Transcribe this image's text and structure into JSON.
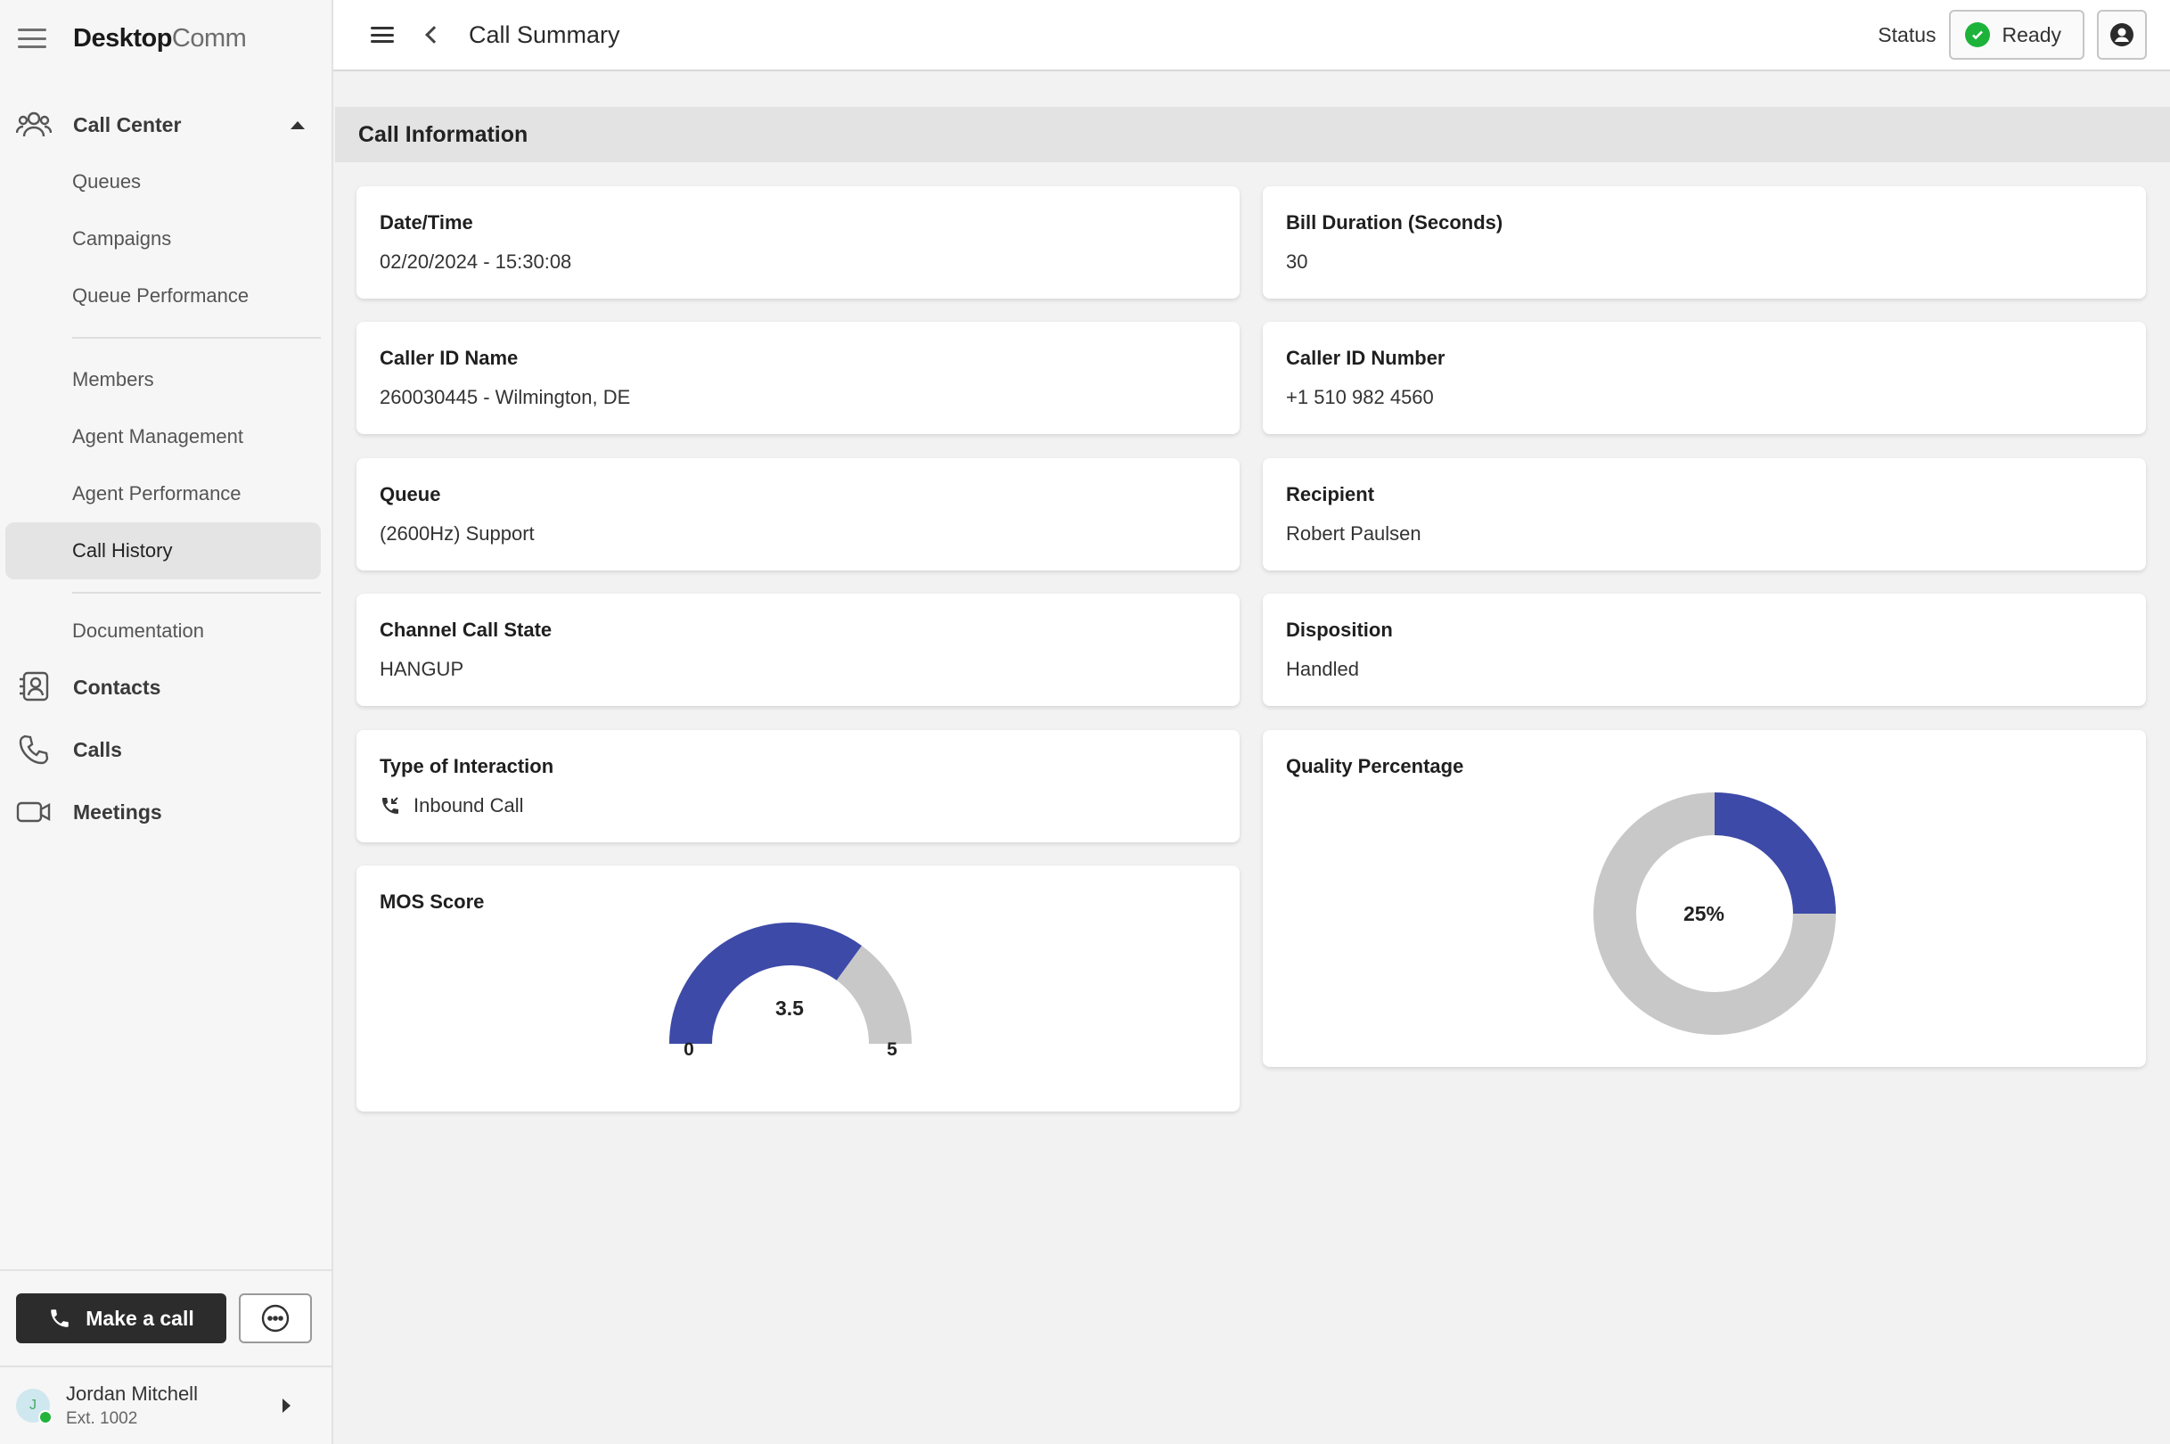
{
  "brand": {
    "bold": "Desktop",
    "light": "Comm"
  },
  "sidebar": {
    "call_center": "Call Center",
    "sub1": [
      "Queues",
      "Campaigns",
      "Queue Performance"
    ],
    "sub2": [
      "Members",
      "Agent Management",
      "Agent Performance",
      "Call History"
    ],
    "sub3": [
      "Documentation"
    ],
    "main": [
      "Contacts",
      "Calls",
      "Meetings"
    ],
    "make_call": "Make a call",
    "user_name": "Jordan Mitchell",
    "user_ext": "Ext. 1002",
    "avatar_initial": "J"
  },
  "topbar": {
    "title": "Call Summary",
    "status_label": "Status",
    "status_value": "Ready"
  },
  "section_title": "Call Information",
  "fields": {
    "datetime": {
      "label": "Date/Time",
      "value": "02/20/2024 - 15:30:08"
    },
    "bill": {
      "label": "Bill Duration (Seconds)",
      "value": "30"
    },
    "caller_name": {
      "label": "Caller ID Name",
      "value": "260030445 - Wilmington, DE"
    },
    "caller_number": {
      "label": "Caller ID Number",
      "value": "+1 510 982 4560"
    },
    "queue": {
      "label": "Queue",
      "value": "(2600Hz) Support"
    },
    "recipient": {
      "label": "Recipient",
      "value": "Robert Paulsen"
    },
    "channel_state": {
      "label": "Channel Call State",
      "value": "HANGUP"
    },
    "disposition": {
      "label": "Disposition",
      "value": "Handled"
    },
    "interaction": {
      "label": "Type of Interaction",
      "value": "Inbound Call"
    },
    "quality": {
      "label": "Quality Percentage"
    },
    "mos": {
      "label": "MOS Score"
    }
  },
  "colors": {
    "accent": "#3d4aa8",
    "track": "#c8c8c8",
    "ready": "#1db33a"
  },
  "chart_data": [
    {
      "type": "gauge",
      "title": "MOS Score",
      "value": 3.5,
      "value_label": "3.5",
      "min": 0,
      "max": 5,
      "min_label": "0",
      "max_label": "5"
    },
    {
      "type": "pie",
      "title": "Quality Percentage",
      "value": 25,
      "value_label": "25%",
      "total": 100
    }
  ]
}
